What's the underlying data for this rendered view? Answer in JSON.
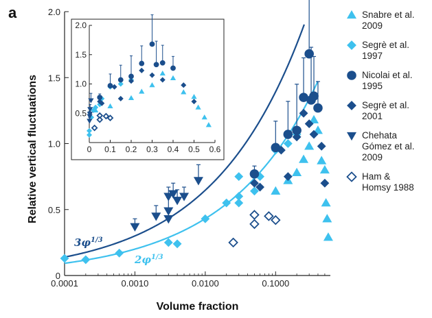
{
  "panel_label": "a",
  "colors": {
    "light": "#3ec1ee",
    "dark": "#1b4e8c",
    "curve_dark": "#1b4e8c",
    "curve_light": "#3ec1ee"
  },
  "chart_data": [
    {
      "type": "scatter",
      "xlabel": "Volume fraction",
      "ylabel": "Relative vertical fluctuations",
      "xscale": "log",
      "xlim": [
        0.0001,
        0.6
      ],
      "ylim": [
        0,
        2.0
      ],
      "x_ticks": [
        "0.0001",
        "0.0010",
        "0.0100",
        "0.1000"
      ],
      "y_ticks": [
        "0",
        "0.5",
        "1.0",
        "1.5",
        "2.0"
      ],
      "legend_position": "right",
      "curves": [
        {
          "label_main": "3φ",
          "label_exp": "1/3",
          "coef": 3,
          "exponent": 0.3333,
          "color": "dark"
        },
        {
          "label_main": "2φ",
          "label_exp": "1/3",
          "coef": 2,
          "exponent": 0.3333,
          "color": "light"
        }
      ],
      "series": [
        {
          "name_lines": [
            "Snabre et al.",
            "2009"
          ],
          "marker": "triangle-up",
          "color": "light",
          "filled": true,
          "points": [
            [
              0.3,
              0.98
            ],
            [
              0.35,
              1.18
            ],
            [
              0.4,
              1.1
            ],
            [
              0.45,
              0.87
            ],
            [
              0.5,
              0.8
            ],
            [
              0.52,
              0.55
            ],
            [
              0.54,
              0.43
            ],
            [
              0.56,
              0.29
            ],
            [
              0.25,
              0.88
            ],
            [
              0.2,
              0.78
            ],
            [
              0.15,
              0.72
            ],
            [
              0.1,
              0.64
            ]
          ]
        },
        {
          "name_lines": [
            "Segrè et al.",
            "1997"
          ],
          "marker": "diamond",
          "color": "light",
          "filled": true,
          "points": [
            [
              0.0001,
              0.13
            ],
            [
              0.0002,
              0.12
            ],
            [
              0.0006,
              0.17
            ],
            [
              0.003,
              0.25
            ],
            [
              0.004,
              0.24
            ],
            [
              0.01,
              0.43
            ],
            [
              0.02,
              0.55
            ],
            [
              0.03,
              0.55
            ],
            [
              0.03,
              0.6
            ],
            [
              0.03,
              0.75
            ],
            [
              0.05,
              0.64
            ],
            [
              0.06,
              0.75
            ],
            [
              0.1,
              0.95
            ],
            [
              0.15,
              1.0
            ],
            [
              0.2,
              1.07
            ]
          ]
        },
        {
          "name_lines": [
            "Nicolai et al.",
            "1995"
          ],
          "marker": "circle",
          "color": "dark",
          "filled": true,
          "points": [
            [
              0.05,
              0.77,
              0.06
            ],
            [
              0.1,
              0.97,
              0.2
            ],
            [
              0.15,
              1.07,
              0.25
            ],
            [
              0.2,
              1.1,
              0.35
            ],
            [
              0.25,
              1.35,
              0.3
            ],
            [
              0.3,
              1.68,
              0.5
            ],
            [
              0.32,
              1.33,
              0.4
            ],
            [
              0.35,
              1.36,
              0.3
            ],
            [
              0.4,
              1.27,
              0.2
            ]
          ]
        },
        {
          "name_lines": [
            "Segrè et al.",
            "2001"
          ],
          "marker": "diamond",
          "color": "dark",
          "filled": true,
          "points": [
            [
              0.05,
              0.7
            ],
            [
              0.06,
              0.67
            ],
            [
              0.12,
              0.95
            ],
            [
              0.15,
              0.75
            ],
            [
              0.2,
              1.05
            ],
            [
              0.25,
              1.23
            ],
            [
              0.3,
              1.15
            ],
            [
              0.35,
              1.07
            ],
            [
              0.45,
              0.98
            ],
            [
              0.5,
              0.7
            ]
          ]
        },
        {
          "name_lines": [
            "Chehata",
            "Gómez et al.",
            "2009"
          ],
          "marker": "triangle-down",
          "color": "dark",
          "filled": true,
          "points": [
            [
              0.001,
              0.37,
              0.06
            ],
            [
              0.002,
              0.45,
              0.08
            ],
            [
              0.003,
              0.49,
              0.1
            ],
            [
              0.003,
              0.6,
              0.07
            ],
            [
              0.003,
              0.43,
              0.07
            ],
            [
              0.0035,
              0.62,
              0.08
            ],
            [
              0.004,
              0.57,
              0.08
            ],
            [
              0.005,
              0.6,
              0.07
            ],
            [
              0.008,
              0.72,
              0.12
            ]
          ]
        },
        {
          "name_lines": [
            "Ham &",
            "Homsy 1988"
          ],
          "marker": "diamond",
          "color": "dark",
          "filled": false,
          "points": [
            [
              0.025,
              0.25
            ],
            [
              0.05,
              0.46
            ],
            [
              0.05,
              0.39
            ],
            [
              0.08,
              0.45
            ],
            [
              0.1,
              0.42
            ]
          ]
        }
      ]
    },
    {
      "type": "scatter",
      "role": "inset",
      "xscale": "linear",
      "xlim": [
        0,
        0.6
      ],
      "ylim": [
        0,
        2.0
      ],
      "x_ticks": [
        "0",
        "0.1",
        "0.2",
        "0.3",
        "0.4",
        "0.5",
        "0.6"
      ],
      "y_ticks": [
        "0.5",
        "1.0",
        "1.5",
        "2.0"
      ],
      "series": [
        {
          "marker": "triangle-up",
          "color": "light",
          "filled": true,
          "points": [
            [
              0.03,
              0.55
            ],
            [
              0.1,
              0.62
            ],
            [
              0.2,
              0.76
            ],
            [
              0.25,
              0.87
            ],
            [
              0.3,
              0.98
            ],
            [
              0.35,
              1.18
            ],
            [
              0.4,
              1.1
            ],
            [
              0.45,
              0.86
            ],
            [
              0.5,
              0.78
            ],
            [
              0.52,
              0.6
            ],
            [
              0.55,
              0.43
            ],
            [
              0.57,
              0.3
            ]
          ]
        },
        {
          "marker": "diamond",
          "color": "light",
          "filled": true,
          "points": [
            [
              0.0,
              0.13
            ],
            [
              0.0,
              0.2
            ],
            [
              0.01,
              0.43
            ],
            [
              0.02,
              0.55
            ],
            [
              0.03,
              0.6
            ],
            [
              0.05,
              0.65
            ],
            [
              0.06,
              0.75
            ],
            [
              0.1,
              0.95
            ],
            [
              0.15,
              1.0
            ],
            [
              0.2,
              1.07
            ]
          ]
        },
        {
          "marker": "circle",
          "color": "dark",
          "filled": true,
          "points": [
            [
              0.05,
              0.77,
              0.06
            ],
            [
              0.1,
              0.97,
              0.2
            ],
            [
              0.15,
              1.07,
              0.25
            ],
            [
              0.2,
              1.13,
              0.35
            ],
            [
              0.25,
              1.35,
              0.3
            ],
            [
              0.3,
              1.68,
              0.5
            ],
            [
              0.32,
              1.33,
              0.4
            ],
            [
              0.35,
              1.36,
              0.3
            ],
            [
              0.4,
              1.27,
              0.2
            ]
          ]
        },
        {
          "marker": "diamond",
          "color": "dark",
          "filled": true,
          "points": [
            [
              0.05,
              0.7
            ],
            [
              0.06,
              0.67
            ],
            [
              0.12,
              0.95
            ],
            [
              0.15,
              0.75
            ],
            [
              0.2,
              1.05
            ],
            [
              0.25,
              1.23
            ],
            [
              0.3,
              1.15
            ],
            [
              0.35,
              1.07
            ],
            [
              0.45,
              0.98
            ],
            [
              0.5,
              0.7
            ]
          ]
        },
        {
          "marker": "triangle-down",
          "color": "dark",
          "filled": true,
          "points": [
            [
              0.001,
              0.37,
              0.06
            ],
            [
              0.002,
              0.45,
              0.08
            ],
            [
              0.003,
              0.49,
              0.1
            ],
            [
              0.004,
              0.57,
              0.08
            ],
            [
              0.008,
              0.72,
              0.12
            ]
          ]
        },
        {
          "marker": "diamond",
          "color": "dark",
          "filled": false,
          "points": [
            [
              0.025,
              0.25
            ],
            [
              0.05,
              0.46
            ],
            [
              0.05,
              0.39
            ],
            [
              0.08,
              0.45
            ],
            [
              0.1,
              0.42
            ]
          ]
        }
      ]
    }
  ]
}
